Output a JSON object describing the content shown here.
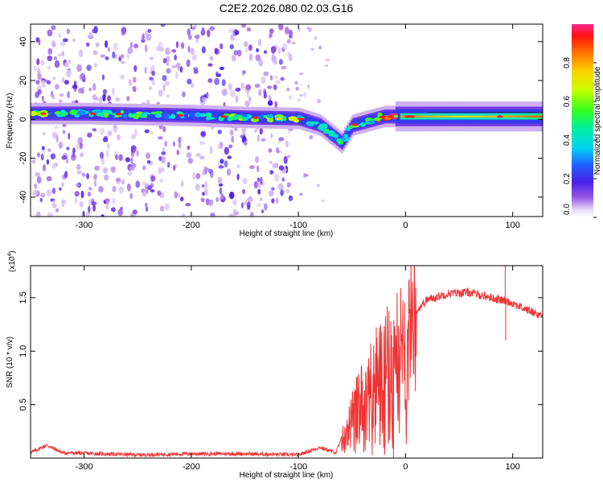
{
  "title": "C2E2.2026.080.02.03.G16",
  "chart_data": [
    {
      "type": "heatmap",
      "name": "spectrogram",
      "xlabel": "Height of straight line (km)",
      "ylabel": "Frequency (Hz)",
      "xlim": [
        -350,
        128
      ],
      "ylim": [
        -50,
        49
      ],
      "xticks": [
        -300,
        -200,
        -100,
        0,
        100
      ],
      "yticks": [
        -40,
        -20,
        0,
        20,
        40
      ],
      "colorbar": {
        "label": "Normalized spectral amplitude",
        "range": [
          0.0,
          1.0
        ],
        "ticks": [
          0.0,
          0.2,
          0.4,
          0.6,
          0.8
        ],
        "tick_labels": [
          "0.0",
          "0.2",
          "0.4",
          "0.6",
          "0.8"
        ]
      },
      "main_band": {
        "description_points": [
          {
            "x": -350,
            "f": 3.0,
            "amp": 0.55
          },
          {
            "x": -300,
            "f": 3.0,
            "amp": 0.45
          },
          {
            "x": -250,
            "f": 2.5,
            "amp": 0.45
          },
          {
            "x": -200,
            "f": 2.0,
            "amp": 0.4
          },
          {
            "x": -150,
            "f": 1.0,
            "amp": 0.5
          },
          {
            "x": -100,
            "f": 0.5,
            "amp": 0.6
          },
          {
            "x": -80,
            "f": -3.0,
            "amp": 0.4
          },
          {
            "x": -60,
            "f": -12.0,
            "amp": 0.3
          },
          {
            "x": -50,
            "f": -3.0,
            "amp": 0.45
          },
          {
            "x": -20,
            "f": 1.5,
            "amp": 0.75
          },
          {
            "x": 0,
            "f": 1.5,
            "amp": 0.85
          },
          {
            "x": 50,
            "f": 1.5,
            "amp": 0.75
          },
          {
            "x": 90,
            "f": 1.5,
            "amp": 0.8
          },
          {
            "x": 128,
            "f": 1.5,
            "amp": 0.9
          }
        ]
      }
    },
    {
      "type": "line",
      "name": "snr",
      "xlabel": "Height of straight line (km)",
      "ylabel": "SNR (10 * v/v)",
      "y_multiplier": "(x10",
      "y_multiplier_exp": "4",
      "y_multiplier_close": ")",
      "xlim": [
        -350,
        128
      ],
      "ylim": [
        0,
        1.8
      ],
      "xticks": [
        -300,
        -200,
        -100,
        0,
        100
      ],
      "yticks": [
        0.5,
        1.0,
        1.5
      ],
      "ytick_labels": [
        "0.5",
        "1.0",
        "1.5"
      ],
      "color": "#ee3333",
      "envelope": [
        {
          "x": -350,
          "y": 0.05
        },
        {
          "x": -335,
          "y": 0.12
        },
        {
          "x": -320,
          "y": 0.05
        },
        {
          "x": -250,
          "y": 0.03
        },
        {
          "x": -200,
          "y": 0.04
        },
        {
          "x": -150,
          "y": 0.04
        },
        {
          "x": -100,
          "y": 0.03
        },
        {
          "x": -80,
          "y": 0.1
        },
        {
          "x": -65,
          "y": 0.05
        },
        {
          "x": -55,
          "y": 0.3
        },
        {
          "x": -45,
          "y": 0.55
        },
        {
          "x": -35,
          "y": 0.75
        },
        {
          "x": -20,
          "y": 0.95
        },
        {
          "x": -10,
          "y": 1.05
        },
        {
          "x": 0,
          "y": 1.2
        },
        {
          "x": 10,
          "y": 1.38
        },
        {
          "x": 20,
          "y": 1.48
        },
        {
          "x": 40,
          "y": 1.54
        },
        {
          "x": 60,
          "y": 1.55
        },
        {
          "x": 80,
          "y": 1.5
        },
        {
          "x": 93,
          "y": 1.47
        },
        {
          "x": 100,
          "y": 1.45
        },
        {
          "x": 110,
          "y": 1.4
        },
        {
          "x": 128,
          "y": 1.33
        }
      ],
      "spikes": [
        {
          "x": 93,
          "y": 1.8
        },
        {
          "x": 93.5,
          "y": 1.1
        }
      ]
    }
  ]
}
